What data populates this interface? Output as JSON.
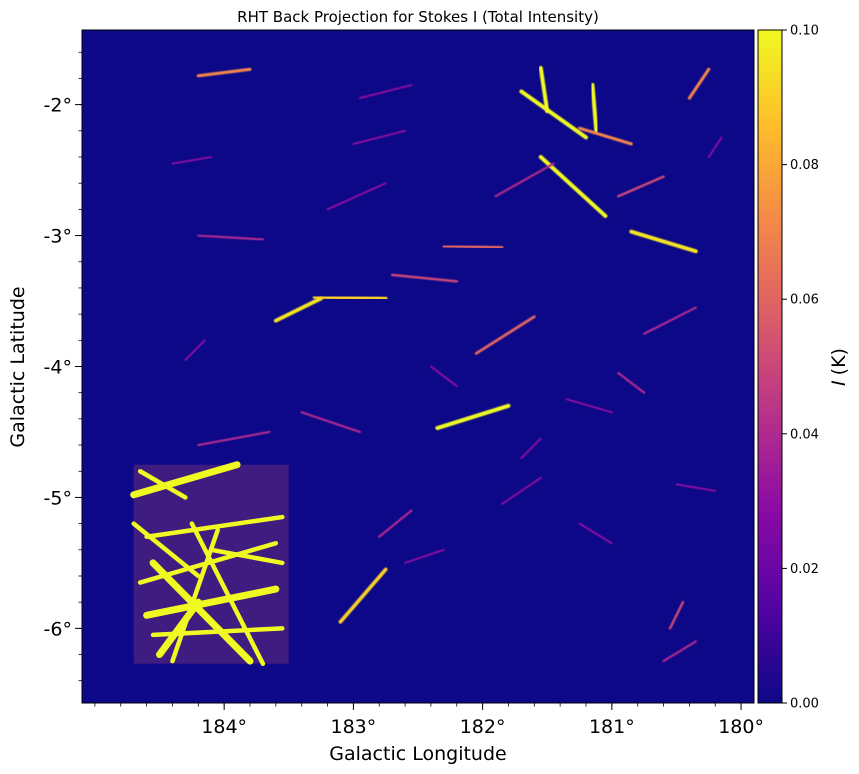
{
  "chart_data": {
    "type": "heatmap",
    "title": "RHT Back Projection for Stokes I (Total Intensity)",
    "xlabel": "Galactic Longitude",
    "ylabel": "Galactic Latitude",
    "x_ticks": [
      {
        "value": 184,
        "label": "184°"
      },
      {
        "value": 183,
        "label": "183°"
      },
      {
        "value": 182,
        "label": "182°"
      },
      {
        "value": 181,
        "label": "181°"
      },
      {
        "value": 180,
        "label": "180°"
      }
    ],
    "y_ticks": [
      {
        "value": -2,
        "label": "-2°"
      },
      {
        "value": -3,
        "label": "-3°"
      },
      {
        "value": -4,
        "label": "-4°"
      },
      {
        "value": -5,
        "label": "-5°"
      },
      {
        "value": -6,
        "label": "-6°"
      }
    ],
    "xlim": [
      185.1,
      179.9
    ],
    "ylim": [
      -6.57,
      -1.43
    ],
    "colorbar": {
      "label": "I (K)",
      "label_var": "I",
      "label_unit": "(K)",
      "range": [
        0.0,
        0.1
      ],
      "ticks": [
        {
          "value": 0.0,
          "label": "0.00"
        },
        {
          "value": 0.02,
          "label": "0.02"
        },
        {
          "value": 0.04,
          "label": "0.04"
        },
        {
          "value": 0.06,
          "label": "0.06"
        },
        {
          "value": 0.08,
          "label": "0.08"
        },
        {
          "value": 0.1,
          "label": "0.10"
        }
      ],
      "colormap": "plasma",
      "colormap_stops": [
        "#0d0887",
        "#5302a3",
        "#8b0aa5",
        "#b83289",
        "#db5c68",
        "#f48849",
        "#febd2a",
        "#f0f921"
      ]
    },
    "background_color": "#0d0887",
    "data_region": {
      "lon": [
        184.8,
        179.85
      ],
      "lat": [
        -6.27,
        -1.73
      ]
    },
    "bright_region": {
      "lon": [
        184.7,
        183.5
      ],
      "lat": [
        -6.27,
        -4.75
      ]
    },
    "filaments": [
      {
        "lon1": 181.55,
        "lat1": -1.72,
        "lon2": 181.5,
        "lat2": -2.05,
        "intensity": 0.1
      },
      {
        "lon1": 181.7,
        "lat1": -1.9,
        "lon2": 181.2,
        "lat2": -2.25,
        "intensity": 0.1
      },
      {
        "lon1": 181.55,
        "lat1": -2.4,
        "lon2": 181.05,
        "lat2": -2.85,
        "intensity": 0.1
      },
      {
        "lon1": 181.15,
        "lat1": -1.85,
        "lon2": 181.12,
        "lat2": -2.2,
        "intensity": 0.1
      },
      {
        "lon1": 180.85,
        "lat1": -2.97,
        "lon2": 180.35,
        "lat2": -3.12,
        "intensity": 0.095
      },
      {
        "lon1": 181.25,
        "lat1": -2.18,
        "lon2": 180.85,
        "lat2": -2.3,
        "intensity": 0.07
      },
      {
        "lon1": 182.35,
        "lat1": -4.47,
        "lon2": 181.8,
        "lat2": -4.3,
        "intensity": 0.1
      },
      {
        "lon1": 183.6,
        "lat1": -3.65,
        "lon2": 183.25,
        "lat2": -3.48,
        "intensity": 0.095
      },
      {
        "lon1": 183.3,
        "lat1": -3.47,
        "lon2": 182.75,
        "lat2": -3.48,
        "intensity": 0.09
      },
      {
        "lon1": 182.3,
        "lat1": -3.08,
        "lon2": 181.85,
        "lat2": -3.09,
        "intensity": 0.06
      },
      {
        "lon1": 183.1,
        "lat1": -5.95,
        "lon2": 182.75,
        "lat2": -5.55,
        "intensity": 0.09
      },
      {
        "lon1": 182.05,
        "lat1": -3.9,
        "lon2": 181.6,
        "lat2": -3.62,
        "intensity": 0.06
      },
      {
        "lon1": 184.2,
        "lat1": -1.78,
        "lon2": 183.8,
        "lat2": -1.73,
        "intensity": 0.07
      },
      {
        "lon1": 180.4,
        "lat1": -1.95,
        "lon2": 180.25,
        "lat2": -1.73,
        "intensity": 0.07
      },
      {
        "lon1": 180.6,
        "lat1": -2.55,
        "lon2": 180.95,
        "lat2": -2.7,
        "intensity": 0.05
      },
      {
        "lon1": 181.9,
        "lat1": -2.7,
        "lon2": 181.45,
        "lat2": -2.45,
        "intensity": 0.04
      },
      {
        "lon1": 182.7,
        "lat1": -3.3,
        "lon2": 182.2,
        "lat2": -3.35,
        "intensity": 0.05
      },
      {
        "lon1": 184.2,
        "lat1": -3.0,
        "lon2": 183.7,
        "lat2": -3.03,
        "intensity": 0.04
      },
      {
        "lon1": 180.6,
        "lat1": -6.25,
        "lon2": 180.35,
        "lat2": -6.1,
        "intensity": 0.04
      },
      {
        "lon1": 180.55,
        "lat1": -6.0,
        "lon2": 180.45,
        "lat2": -5.8,
        "intensity": 0.05
      },
      {
        "lon1": 184.2,
        "lat1": -4.6,
        "lon2": 183.65,
        "lat2": -4.5,
        "intensity": 0.04
      },
      {
        "lon1": 183.4,
        "lat1": -4.35,
        "lon2": 182.95,
        "lat2": -4.5,
        "intensity": 0.04
      },
      {
        "lon1": 182.8,
        "lat1": -5.3,
        "lon2": 182.55,
        "lat2": -5.1,
        "intensity": 0.04
      },
      {
        "lon1": 180.95,
        "lat1": -4.05,
        "lon2": 180.75,
        "lat2": -4.2,
        "intensity": 0.04
      },
      {
        "lon1": 180.75,
        "lat1": -3.75,
        "lon2": 180.35,
        "lat2": -3.55,
        "intensity": 0.04
      },
      {
        "lon1": 182.2,
        "lat1": -4.15,
        "lon2": 182.4,
        "lat2": -4.0,
        "intensity": 0.03
      },
      {
        "lon1": 183.0,
        "lat1": -2.3,
        "lon2": 182.6,
        "lat2": -2.2,
        "intensity": 0.03
      },
      {
        "lon1": 184.4,
        "lat1": -2.45,
        "lon2": 184.1,
        "lat2": -2.4,
        "intensity": 0.03
      },
      {
        "lon1": 181.35,
        "lat1": -4.25,
        "lon2": 181.0,
        "lat2": -4.35,
        "intensity": 0.03
      },
      {
        "lon1": 181.25,
        "lat1": -5.2,
        "lon2": 181.0,
        "lat2": -5.35,
        "intensity": 0.03
      },
      {
        "lon1": 184.3,
        "lat1": -3.95,
        "lon2": 184.15,
        "lat2": -3.8,
        "intensity": 0.03
      },
      {
        "lon1": 182.6,
        "lat1": -5.5,
        "lon2": 182.3,
        "lat2": -5.4,
        "intensity": 0.03
      },
      {
        "lon1": 181.7,
        "lat1": -4.7,
        "lon2": 181.55,
        "lat2": -4.55,
        "intensity": 0.03
      },
      {
        "lon1": 183.2,
        "lat1": -2.8,
        "lon2": 182.75,
        "lat2": -2.6,
        "intensity": 0.03
      },
      {
        "lon1": 180.5,
        "lat1": -4.9,
        "lon2": 180.2,
        "lat2": -4.95,
        "intensity": 0.03
      },
      {
        "lon1": 181.85,
        "lat1": -5.05,
        "lon2": 181.55,
        "lat2": -4.85,
        "intensity": 0.03
      },
      {
        "lon1": 182.95,
        "lat1": -1.95,
        "lon2": 182.55,
        "lat2": -1.85,
        "intensity": 0.03
      },
      {
        "lon1": 180.25,
        "lat1": -2.4,
        "lon2": 180.15,
        "lat2": -2.25,
        "intensity": 0.03
      }
    ],
    "bright_streaks": [
      {
        "lon1": 184.7,
        "lat1": -4.98,
        "lon2": 183.9,
        "lat2": -4.75
      },
      {
        "lon1": 184.6,
        "lat1": -5.3,
        "lon2": 183.55,
        "lat2": -5.15
      },
      {
        "lon1": 184.65,
        "lat1": -5.65,
        "lon2": 183.6,
        "lat2": -5.35
      },
      {
        "lon1": 184.6,
        "lat1": -5.9,
        "lon2": 183.6,
        "lat2": -5.7
      },
      {
        "lon1": 184.55,
        "lat1": -6.05,
        "lon2": 183.55,
        "lat2": -6.0
      },
      {
        "lon1": 184.4,
        "lat1": -6.25,
        "lon2": 184.05,
        "lat2": -5.25
      },
      {
        "lon1": 184.55,
        "lat1": -5.5,
        "lon2": 183.8,
        "lat2": -6.25
      },
      {
        "lon1": 184.25,
        "lat1": -5.2,
        "lon2": 183.7,
        "lat2": -6.27
      },
      {
        "lon1": 184.7,
        "lat1": -5.2,
        "lon2": 184.2,
        "lat2": -5.6
      },
      {
        "lon1": 184.5,
        "lat1": -6.2,
        "lon2": 184.2,
        "lat2": -5.8
      },
      {
        "lon1": 184.1,
        "lat1": -5.4,
        "lon2": 183.55,
        "lat2": -5.5
      },
      {
        "lon1": 184.65,
        "lat1": -4.8,
        "lon2": 184.3,
        "lat2": -5.0
      }
    ]
  }
}
